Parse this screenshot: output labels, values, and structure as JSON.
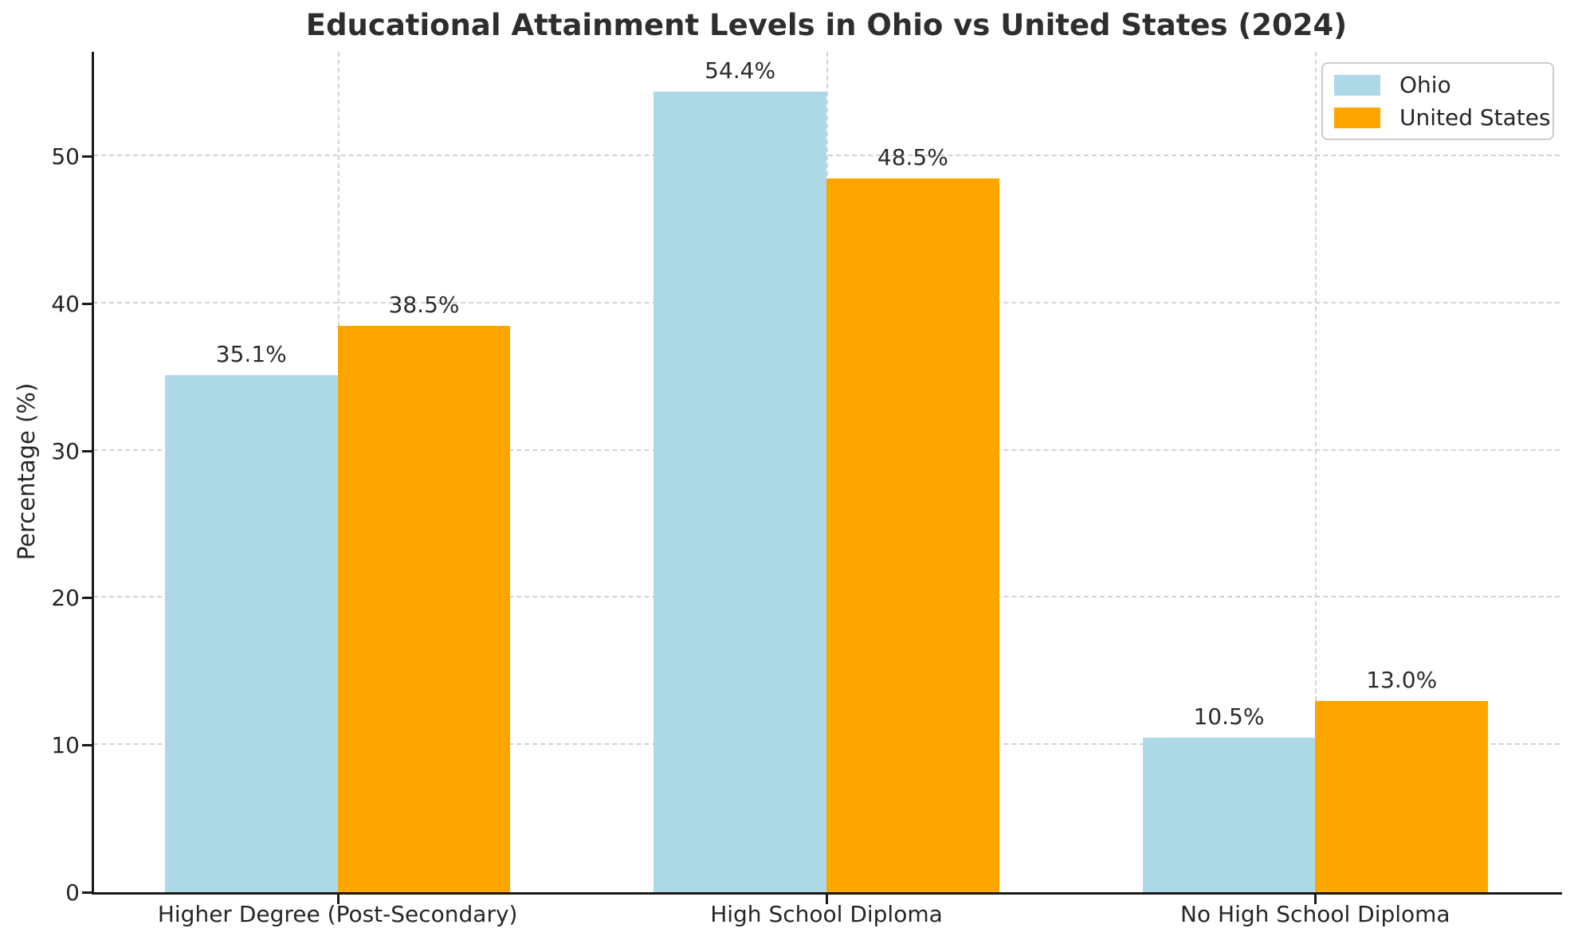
{
  "chart_data": {
    "type": "bar",
    "title": "Educational Attainment Levels in Ohio vs United States (2024)",
    "xlabel": "",
    "ylabel": "Percentage (%)",
    "categories": [
      "Higher Degree (Post-Secondary)",
      "High School Diploma",
      "No High School Diploma"
    ],
    "series": [
      {
        "name": "Ohio",
        "color": "#ADD8E6",
        "values": [
          35.1,
          54.4,
          10.5
        ],
        "labels": [
          "35.1%",
          "54.4%",
          "10.5%"
        ]
      },
      {
        "name": "United States",
        "color": "#FFA500",
        "values": [
          38.5,
          48.5,
          13.0
        ],
        "labels": [
          "38.5%",
          "48.5%",
          "13.0%"
        ]
      }
    ],
    "yticks": [
      "0",
      "10",
      "20",
      "30",
      "40",
      "50"
    ],
    "ylim": [
      0,
      57.1
    ],
    "grid": "dashed, horizontal at yticks and vertical at category centers",
    "legend_position": "upper right"
  },
  "colors": {
    "background": "#ffffff",
    "ohio_bar": "#ADD8E6",
    "us_bar": "#FFA500",
    "text": "#262626",
    "gridline": "#d2d2d2",
    "spine": "#1a1a1a",
    "legend_border": "#cccccc"
  }
}
